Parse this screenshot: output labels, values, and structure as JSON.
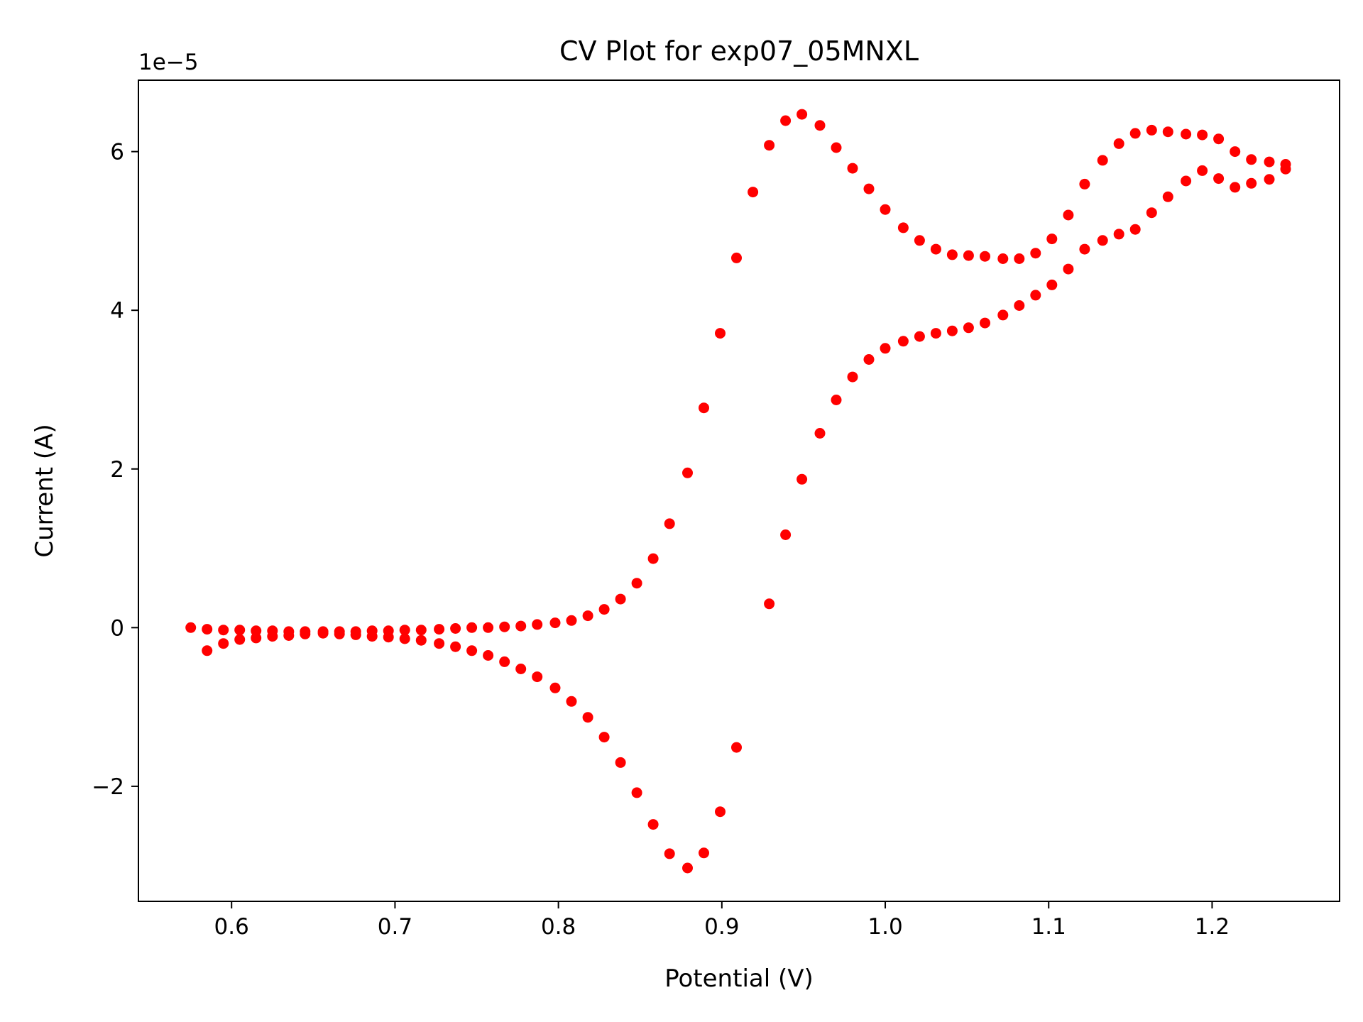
{
  "chart_data": {
    "type": "scatter",
    "title": "CV Plot for exp07_05MNXL",
    "xlabel": "Potential (V)",
    "ylabel": "Current (A)",
    "y_offset_label": "1e−5",
    "y_scale_factor": 1e-05,
    "xlim": [
      0.543,
      1.278
    ],
    "ylim": [
      -3.45,
      6.9
    ],
    "x_ticks": [
      0.6,
      0.7,
      0.8,
      0.9,
      1.0,
      1.1,
      1.2
    ],
    "x_tick_labels": [
      "0.6",
      "0.7",
      "0.8",
      "0.9",
      "1.0",
      "1.1",
      "1.2"
    ],
    "y_ticks": [
      -2,
      0,
      2,
      4,
      6
    ],
    "y_tick_labels": [
      "−2",
      "0",
      "2",
      "4",
      "6"
    ],
    "grid": false,
    "marker_color": "#ff0000",
    "series": [
      {
        "x": [
          0.575,
          0.585,
          0.595,
          0.605,
          0.615,
          0.625,
          0.635,
          0.645,
          0.656,
          0.666,
          0.676,
          0.686,
          0.696,
          0.706,
          0.716,
          0.727,
          0.737,
          0.747,
          0.757,
          0.767,
          0.777,
          0.787,
          0.798,
          0.808,
          0.818,
          0.828,
          0.838,
          0.848,
          0.858,
          0.868,
          0.879,
          0.889,
          0.899,
          0.909,
          0.919,
          0.929,
          0.939,
          0.949,
          0.96,
          0.97,
          0.98,
          0.99,
          1.0,
          1.011,
          1.021,
          1.031,
          1.041,
          1.051,
          1.061,
          1.072,
          1.082,
          1.092,
          1.102,
          1.112,
          1.122,
          1.133,
          1.143,
          1.153,
          1.163,
          1.173,
          1.184,
          1.194,
          1.204,
          1.214,
          1.224,
          1.235,
          1.245
        ],
        "y": [
          0.0,
          -0.02,
          -0.03,
          -0.03,
          -0.04,
          -0.04,
          -0.05,
          -0.05,
          -0.05,
          -0.05,
          -0.05,
          -0.04,
          -0.04,
          -0.03,
          -0.03,
          -0.02,
          -0.01,
          0.0,
          0.0,
          0.01,
          0.02,
          0.04,
          0.06,
          0.09,
          0.15,
          0.23,
          0.36,
          0.56,
          0.87,
          1.31,
          1.95,
          2.77,
          3.71,
          4.66,
          5.49,
          6.08,
          6.39,
          6.47,
          6.33,
          6.05,
          5.79,
          5.53,
          5.27,
          5.04,
          4.88,
          4.77,
          4.7,
          4.69,
          4.68,
          4.65,
          4.65,
          4.72,
          4.9,
          5.2,
          5.59,
          5.89,
          6.1,
          6.23,
          6.27,
          6.25,
          6.22,
          6.21,
          6.16,
          6.0,
          5.9,
          5.87,
          5.84
        ]
      },
      {
        "x": [
          0.585,
          0.595,
          0.605,
          0.615,
          0.625,
          0.635,
          0.645,
          0.656,
          0.666,
          0.676,
          0.686,
          0.696,
          0.706,
          0.716,
          0.727,
          0.737,
          0.747,
          0.757,
          0.767,
          0.777,
          0.787,
          0.798,
          0.808,
          0.818,
          0.828,
          0.838,
          0.848,
          0.858,
          0.868,
          0.879,
          0.889,
          0.899,
          0.909,
          0.929,
          0.939,
          0.949,
          0.96,
          0.97,
          0.98,
          0.99,
          1.0,
          1.011,
          1.021,
          1.031,
          1.041,
          1.051,
          1.061,
          1.072,
          1.082,
          1.092,
          1.102,
          1.112,
          1.122,
          1.133,
          1.143,
          1.153,
          1.163,
          1.173,
          1.184,
          1.194,
          1.204,
          1.214,
          1.224,
          1.235,
          1.245
        ],
        "y": [
          -0.29,
          -0.2,
          -0.15,
          -0.13,
          -0.11,
          -0.1,
          -0.08,
          -0.07,
          -0.08,
          -0.09,
          -0.11,
          -0.12,
          -0.14,
          -0.16,
          -0.2,
          -0.24,
          -0.29,
          -0.35,
          -0.43,
          -0.52,
          -0.62,
          -0.76,
          -0.93,
          -1.13,
          -1.38,
          -1.7,
          -2.08,
          -2.48,
          -2.85,
          -3.03,
          -2.84,
          -2.32,
          -1.51,
          0.3,
          1.17,
          1.87,
          2.45,
          2.87,
          3.16,
          3.38,
          3.52,
          3.61,
          3.67,
          3.71,
          3.74,
          3.78,
          3.84,
          3.94,
          4.06,
          4.19,
          4.32,
          4.52,
          4.77,
          4.88,
          4.96,
          5.02,
          5.23,
          5.43,
          5.63,
          5.76,
          5.66,
          5.55,
          5.6,
          5.65,
          5.78
        ]
      }
    ]
  }
}
